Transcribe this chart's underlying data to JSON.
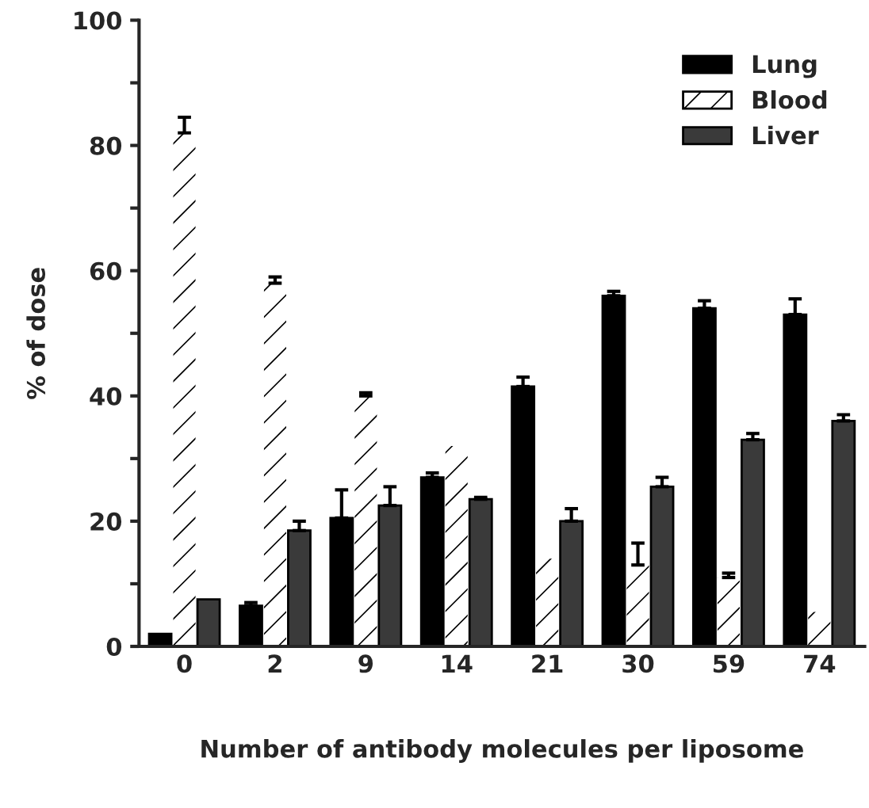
{
  "chart_data": {
    "type": "bar",
    "xlabel": "Number of antibody molecules per liposome",
    "ylabel": "% of dose",
    "categories": [
      "0",
      "2",
      "9",
      "14",
      "21",
      "30",
      "59",
      "74"
    ],
    "series": [
      {
        "name": "Lung",
        "color": "#000000",
        "values": [
          2,
          6.5,
          20.5,
          27,
          41.5,
          56,
          54,
          53
        ],
        "errors": [
          null,
          0.5,
          4.5,
          0.7,
          1.5,
          0.7,
          1.2,
          2.5
        ]
      },
      {
        "name": "Blood",
        "color": "#ffffff",
        "values": [
          82,
          58,
          40,
          32,
          14,
          13,
          11,
          5.5
        ],
        "errors": [
          2.5,
          1,
          0.5,
          null,
          null,
          3.5,
          0.7,
          null
        ]
      },
      {
        "name": "Liver",
        "color": "#3a3a3a",
        "values": [
          7.5,
          18.5,
          22.5,
          23.5,
          20,
          25.5,
          33,
          36
        ],
        "errors": [
          null,
          1.5,
          3,
          0.3,
          2,
          1.5,
          1,
          1
        ]
      }
    ],
    "ylim": [
      0,
      100
    ],
    "yticks": [
      0,
      {
        "value": 10,
        "label": null
      },
      20,
      {
        "value": 30,
        "label": null
      },
      40,
      {
        "value": 50,
        "label": null
      },
      60,
      {
        "value": 70,
        "label": null
      },
      80,
      {
        "value": 90,
        "label": null
      },
      100
    ],
    "legend": "top right",
    "grid": false
  }
}
